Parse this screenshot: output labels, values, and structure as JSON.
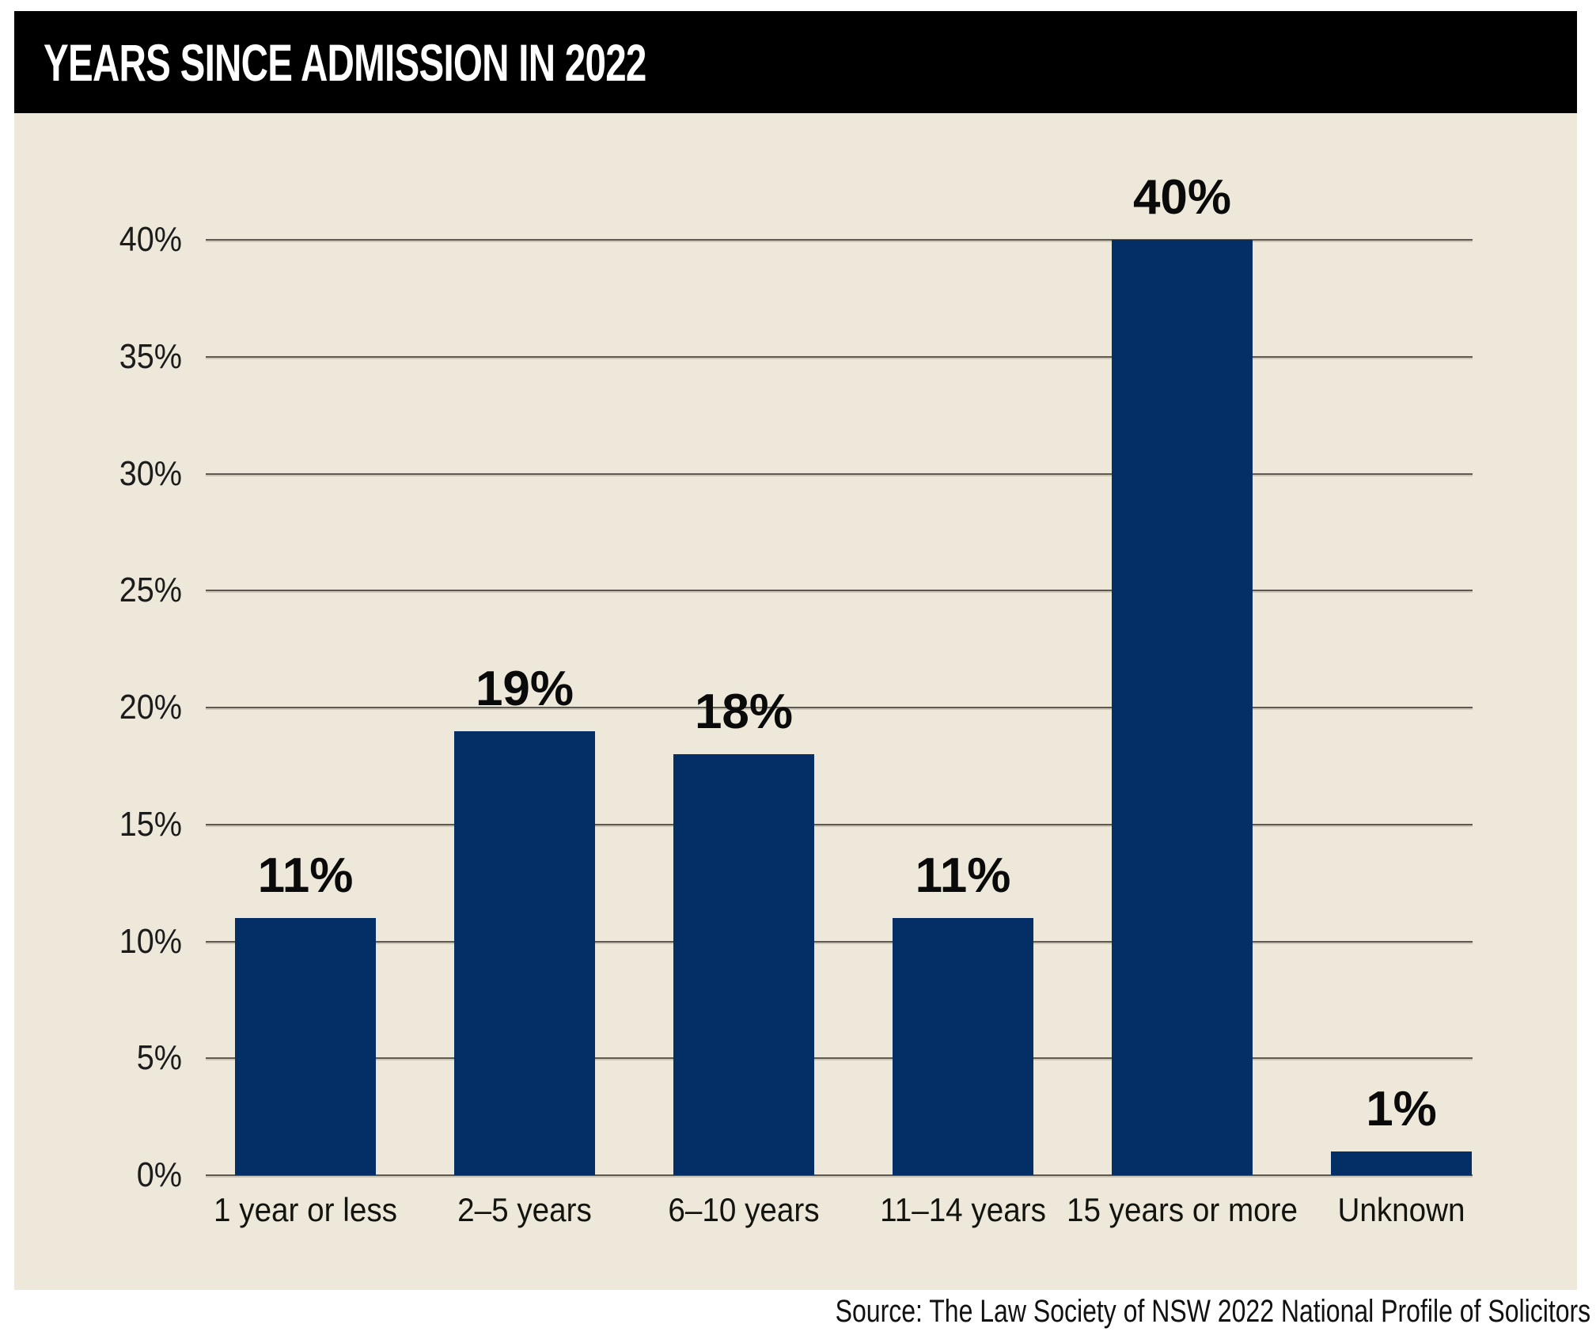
{
  "header": {
    "title": "YEARS SINCE ADMISSION IN 2022"
  },
  "source": "Source: The Law Society of NSW 2022 National Profile of Solicitors",
  "chart_data": {
    "type": "bar",
    "title": "YEARS SINCE ADMISSION IN 2022",
    "categories": [
      "1 year or less",
      "2–5 years",
      "6–10 years",
      "11–14 years",
      "15 years or more",
      "Unknown"
    ],
    "values": [
      11,
      19,
      18,
      11,
      40,
      1
    ],
    "data_labels": [
      "11%",
      "19%",
      "18%",
      "11%",
      "40%",
      "1%"
    ],
    "xlabel": "",
    "ylabel": "",
    "ylim": [
      0,
      40
    ],
    "ytick_step": 5,
    "ytick_labels": [
      "0%",
      "5%",
      "10%",
      "15%",
      "20%",
      "25%",
      "30%",
      "35%",
      "40%"
    ],
    "grid": true,
    "legend": false,
    "colors": {
      "bar": "#032F66",
      "panel_background": "#EDE8DA",
      "page_background": "#FFFFFF",
      "gridline": "#5E5A51",
      "header_background": "#000000",
      "header_text": "#FFFFFF",
      "label_text": "#0A0A0A"
    }
  }
}
